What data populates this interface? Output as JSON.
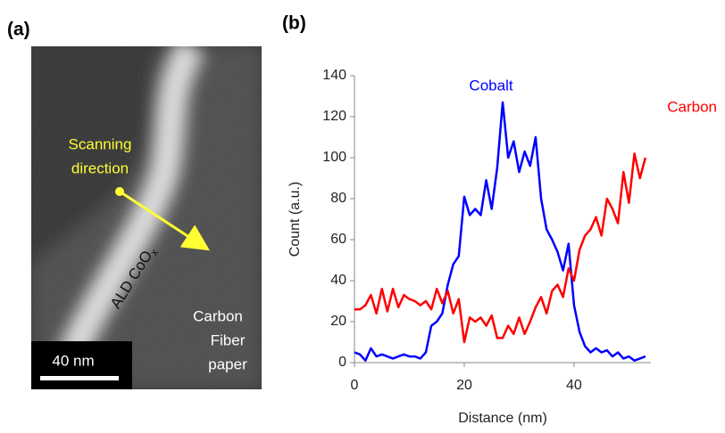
{
  "image_panel": {
    "panel_label": "(a)",
    "scan_text": [
      "Scanning",
      "direction"
    ],
    "layer_label": "ALD CoO",
    "layer_subscript": "x",
    "substrate_text": [
      "Carbon",
      "Fiber",
      "paper"
    ],
    "scale_bar": "40 nm"
  },
  "chart_data": {
    "type": "line",
    "panel_label": "(b)",
    "xlabel": "Distance (nm)",
    "ylabel": "Count (a.u.)",
    "x": [
      0,
      1,
      2,
      3,
      4,
      5,
      6,
      7,
      8,
      9,
      10,
      11,
      12,
      13,
      14,
      15,
      16,
      17,
      18,
      19,
      20,
      21,
      22,
      23,
      24,
      25,
      26,
      27,
      28,
      29,
      30,
      31,
      32,
      33,
      34,
      35,
      36,
      37,
      38,
      39,
      40,
      41,
      42,
      43,
      44,
      45,
      46,
      47,
      48,
      49,
      50,
      51,
      52,
      53
    ],
    "series": [
      {
        "name": "Cobalt",
        "color": "#0000ff",
        "values": [
          5,
          4,
          1,
          7,
          3,
          4,
          3,
          2,
          3,
          4,
          3,
          3,
          2,
          5,
          18,
          20,
          24,
          38,
          48,
          52,
          81,
          72,
          75,
          72,
          89,
          75,
          95,
          127,
          100,
          108,
          93,
          103,
          96,
          110,
          80,
          65,
          60,
          54,
          45,
          58,
          28,
          15,
          8,
          5,
          7,
          5,
          6,
          3,
          5,
          2,
          3,
          1,
          2,
          3
        ]
      },
      {
        "name": "Carbon",
        "color": "#ff0000",
        "values": [
          26,
          26,
          28,
          33,
          24,
          36,
          25,
          36,
          27,
          33,
          31,
          30,
          28,
          30,
          26,
          36,
          29,
          35,
          24,
          31,
          10,
          22,
          20,
          22,
          18,
          23,
          12,
          12,
          18,
          14,
          22,
          14,
          20,
          27,
          32,
          24,
          35,
          38,
          32,
          46,
          40,
          55,
          62,
          65,
          71,
          62,
          80,
          75,
          68,
          93,
          78,
          102,
          90,
          100
        ]
      }
    ],
    "xlim": [
      0,
      54
    ],
    "ylim": [
      0,
      140
    ],
    "xticks": [
      0,
      20,
      40
    ],
    "yticks": [
      0,
      20,
      40,
      60,
      80,
      100,
      120,
      140
    ]
  }
}
